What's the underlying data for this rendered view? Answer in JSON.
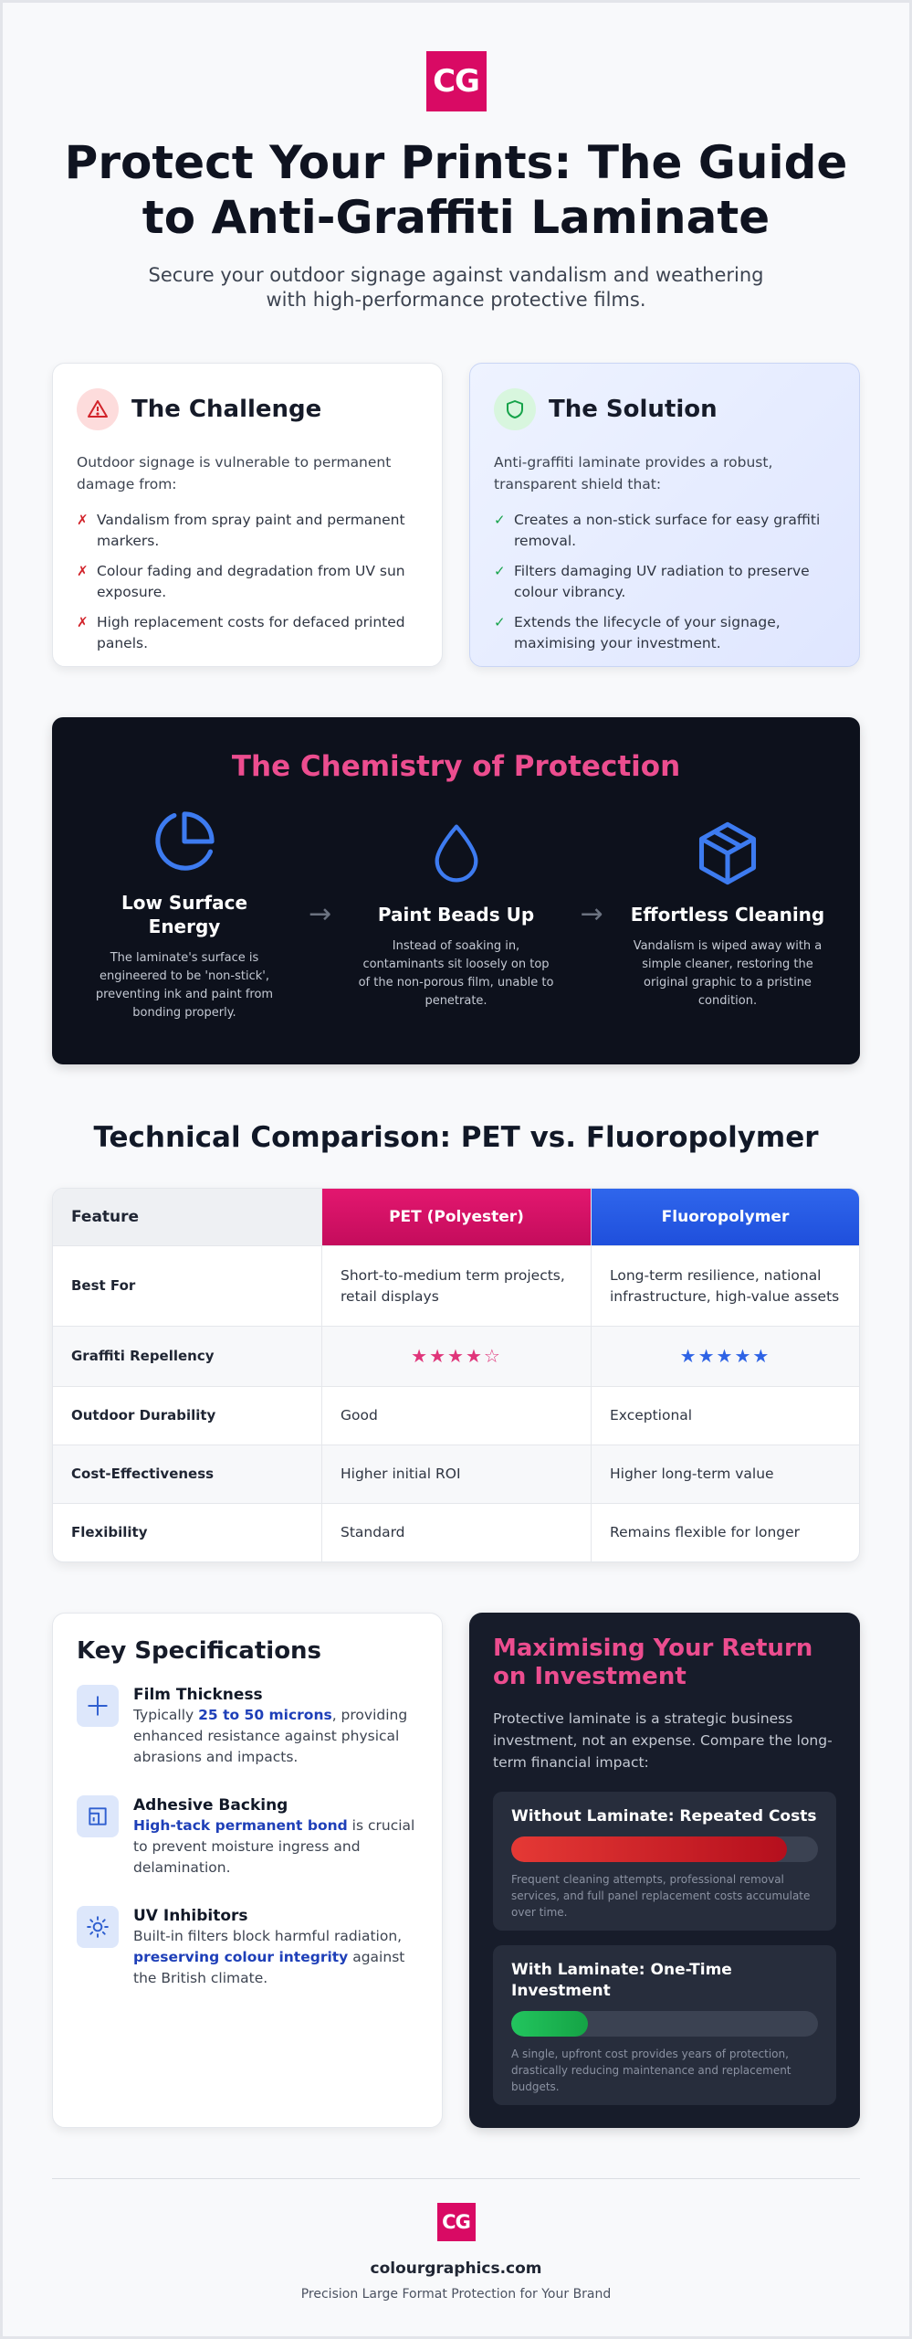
{
  "brand": {
    "logo_text": "CG",
    "color": "#d90a64"
  },
  "header": {
    "title": "Protect Your Prints: The Guide to Anti-Graffiti Laminate",
    "subtitle": "Secure your outdoor signage against vandalism and weathering with high-performance protective films."
  },
  "challenge": {
    "icon": "warning-icon",
    "title": "The Challenge",
    "intro": "Outdoor signage is vulnerable to permanent damage from:",
    "mark": "✗",
    "items": [
      "Vandalism from spray paint and permanent markers.",
      "Colour fading and degradation from UV sun exposure.",
      "High replacement costs for defaced printed panels."
    ]
  },
  "solution": {
    "icon": "shield-icon",
    "title": "The Solution",
    "intro": "Anti-graffiti laminate provides a robust, transparent shield that:",
    "mark": "✓",
    "items": [
      "Creates a non-stick surface for easy graffiti removal.",
      "Filters damaging UV radiation to preserve colour vibrancy.",
      "Extends the lifecycle of your signage, maximising your investment."
    ]
  },
  "chemistry": {
    "title": "The Chemistry of Protection",
    "arrow": "→",
    "steps": [
      {
        "icon": "pie-chart-icon",
        "title": "Low Surface Energy",
        "text": "The laminate's surface is engineered to be 'non-stick', preventing ink and paint from bonding properly."
      },
      {
        "icon": "droplet-icon",
        "title": "Paint Beads Up",
        "text": "Instead of soaking in, contaminants sit loosely on top of the non-porous film, unable to penetrate."
      },
      {
        "icon": "box-icon",
        "title": "Effortless Cleaning",
        "text": "Vandalism is wiped away with a simple cleaner, restoring the original graphic to a pristine condition."
      }
    ]
  },
  "comparison": {
    "title": "Technical Comparison: PET vs. Fluoropolymer",
    "headers": [
      "Feature",
      "PET (Polyester)",
      "Fluoropolymer"
    ],
    "rows": [
      {
        "feature": "Best For",
        "pet": "Short-to-medium term projects, retail displays",
        "fluoro": "Long-term resilience, national infrastructure, high-value assets"
      },
      {
        "feature": "Graffiti Repellency",
        "pet": "★★★★☆",
        "fluoro": "★★★★★",
        "pet_rating": 4,
        "fluoro_rating": 5
      },
      {
        "feature": "Outdoor Durability",
        "pet": "Good",
        "fluoro": "Exceptional"
      },
      {
        "feature": "Cost-Effectiveness",
        "pet": "Higher initial ROI",
        "fluoro": "Higher long-term value"
      },
      {
        "feature": "Flexibility",
        "pet": "Standard",
        "fluoro": "Remains flexible for longer"
      }
    ]
  },
  "specs": {
    "title": "Key Specifications",
    "items": [
      {
        "icon": "plus-icon",
        "name": "Film Thickness",
        "pre": "Typically ",
        "highlight": "25 to 50 microns",
        "post": ", providing enhanced resistance against physical abrasions and impacts."
      },
      {
        "icon": "layers-icon",
        "name": "Adhesive Backing",
        "pre": "",
        "highlight": "High-tack permanent bond",
        "post": " is crucial to prevent moisture ingress and delamination."
      },
      {
        "icon": "sun-icon",
        "name": "UV Inhibitors",
        "pre": "Built-in filters block harmful radiation, ",
        "highlight": "preserving colour integrity",
        "post": " against the British climate."
      }
    ]
  },
  "roi": {
    "title": "Maximising Your Return on Investment",
    "intro": "Protective laminate is a strategic business investment, not an expense. Compare the long-term financial impact:",
    "bars": [
      {
        "title": "Without Laminate: Repeated Costs",
        "level": 0.9,
        "text": "Frequent cleaning attempts, professional removal services, and full panel replacement costs accumulate over time."
      },
      {
        "title": "With Laminate: One-Time Investment",
        "level": 0.25,
        "text": "A single, upfront cost provides years of protection, drastically reducing maintenance and replacement budgets."
      }
    ]
  },
  "footer": {
    "site": "colourgraphics.com",
    "tagline": "Precision Large Format Protection for Your Brand"
  }
}
